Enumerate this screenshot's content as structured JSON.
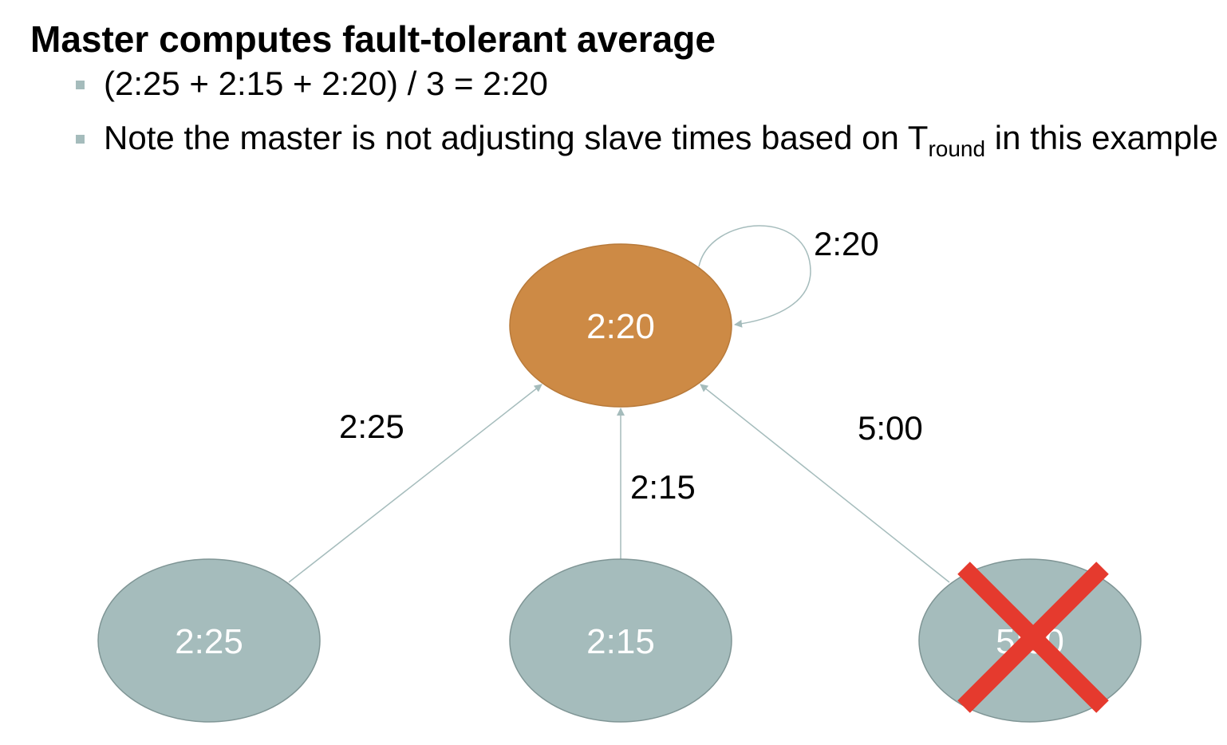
{
  "title": "Master computes fault-tolerant average",
  "bullets": [
    {
      "text": "(2:25 + 2:15 + 2:20) / 3 = 2:20"
    },
    {
      "text_before": "Note the master is not adjusting slave times based on T",
      "subscript": "round",
      "text_after": " in this example"
    }
  ],
  "diagram": {
    "master": {
      "label": "2:20",
      "color": "#cd8a45"
    },
    "slaves": [
      {
        "label": "2:25",
        "color": "#a5bcbc",
        "faulty": false
      },
      {
        "label": "2:15",
        "color": "#a5bcbc",
        "faulty": false
      },
      {
        "label": "5:00",
        "color": "#a5bcbc",
        "faulty": true
      }
    ],
    "edge_labels": {
      "self_loop": "2:20",
      "left": "2:25",
      "middle": "2:15",
      "right": "5:00"
    },
    "arrow_color": "#a5bcbc",
    "cross_color": "#e53a2e"
  }
}
